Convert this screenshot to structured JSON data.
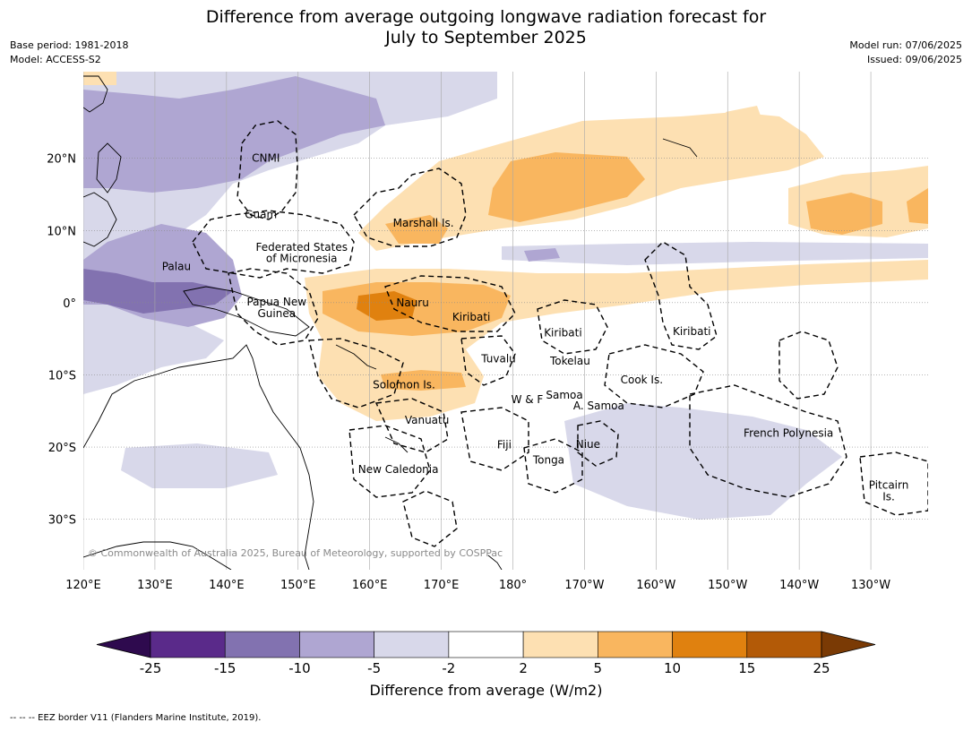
{
  "title_line1": "Difference from average outgoing longwave radiation forecast for",
  "title_line2": "July to September 2025",
  "meta_left": [
    "Base period: 1981-2018",
    "Model: ACCESS-S2"
  ],
  "meta_right": [
    "Model run: 07/06/2025",
    "Issued: 09/06/2025"
  ],
  "copyright": "© Commonwealth of Australia 2025, Bureau of Meteorology, supported by COSPPac",
  "footer": "--  --  -- EEZ border V11 (Flanders Marine Institute, 2019).",
  "axes": {
    "lon_ticks": [
      "120°E",
      "130°E",
      "140°E",
      "150°E",
      "160°E",
      "170°E",
      "180°",
      "170°W",
      "160°W",
      "150°W",
      "140°W",
      "130°W"
    ],
    "lat_ticks": [
      "20°N",
      "10°N",
      "0°",
      "10°S",
      "20°S",
      "30°S"
    ],
    "lon_range": [
      120,
      238
    ],
    "lat_range": [
      -37,
      32
    ]
  },
  "places": [
    {
      "name": "CNMI",
      "lon": 145.5,
      "lat": 20.0
    },
    {
      "name": "Guam",
      "lon": 144.8,
      "lat": 12.2
    },
    {
      "name": "Marshall Is.",
      "lon": 167.5,
      "lat": 11.0
    },
    {
      "name": "Federated States",
      "lon": 150.5,
      "lat": 7.7
    },
    {
      "name": "of Micronesia",
      "lon": 150.5,
      "lat": 6.1
    },
    {
      "name": "Palau",
      "lon": 133.0,
      "lat": 5.0
    },
    {
      "name": "Papua New",
      "lon": 147.0,
      "lat": 0.1
    },
    {
      "name": "Guinea",
      "lon": 147.0,
      "lat": -1.5
    },
    {
      "name": "Nauru",
      "lon": 166.0,
      "lat": 0.0
    },
    {
      "name": "Kiribati",
      "lon": 174.2,
      "lat": -2.0
    },
    {
      "name": "Kiribati",
      "lon": 187.0,
      "lat": -4.2
    },
    {
      "name": "Kiribati",
      "lon": 205.0,
      "lat": -4.0
    },
    {
      "name": "Tuvalu",
      "lon": 178.0,
      "lat": -7.8
    },
    {
      "name": "Tokelau",
      "lon": 188.0,
      "lat": -8.1
    },
    {
      "name": "Cook Is.",
      "lon": 198.0,
      "lat": -10.7
    },
    {
      "name": "Solomon Is.",
      "lon": 164.8,
      "lat": -11.4
    },
    {
      "name": "Samoa",
      "lon": 187.2,
      "lat": -12.8
    },
    {
      "name": "W & F",
      "lon": 182.0,
      "lat": -13.4
    },
    {
      "name": "A. Samoa",
      "lon": 192.0,
      "lat": -14.3
    },
    {
      "name": "Vanuatu",
      "lon": 168.0,
      "lat": -16.3
    },
    {
      "name": "French Polynesia",
      "lon": 218.5,
      "lat": -18.1
    },
    {
      "name": "Fiji",
      "lon": 178.8,
      "lat": -19.7
    },
    {
      "name": "Niue",
      "lon": 190.5,
      "lat": -19.6
    },
    {
      "name": "Tonga",
      "lon": 185.0,
      "lat": -21.8
    },
    {
      "name": "New Caledonia",
      "lon": 164.0,
      "lat": -23.1
    },
    {
      "name": "Pitcairn",
      "lon": 232.5,
      "lat": -25.3
    },
    {
      "name": "Is.",
      "lon": 232.5,
      "lat": -26.9
    }
  ],
  "colorbar": {
    "label": "Difference from average (W/m2)",
    "ticks": [
      "-25",
      "-15",
      "-10",
      "-5",
      "-2",
      "2",
      "5",
      "10",
      "15",
      "25"
    ],
    "colors": [
      "#5a2a8a",
      "#8272b0",
      "#afa6d2",
      "#d8d8ea",
      "#ffffff",
      "#fde0b2",
      "#f9b65f",
      "#e0810f",
      "#b35a07"
    ],
    "extend_low": "#2e0a4e",
    "extend_high": "#7a3a05"
  },
  "map_colors": {
    "ocean": "#ffffff",
    "grid": "#999999",
    "coast": "#000000"
  }
}
